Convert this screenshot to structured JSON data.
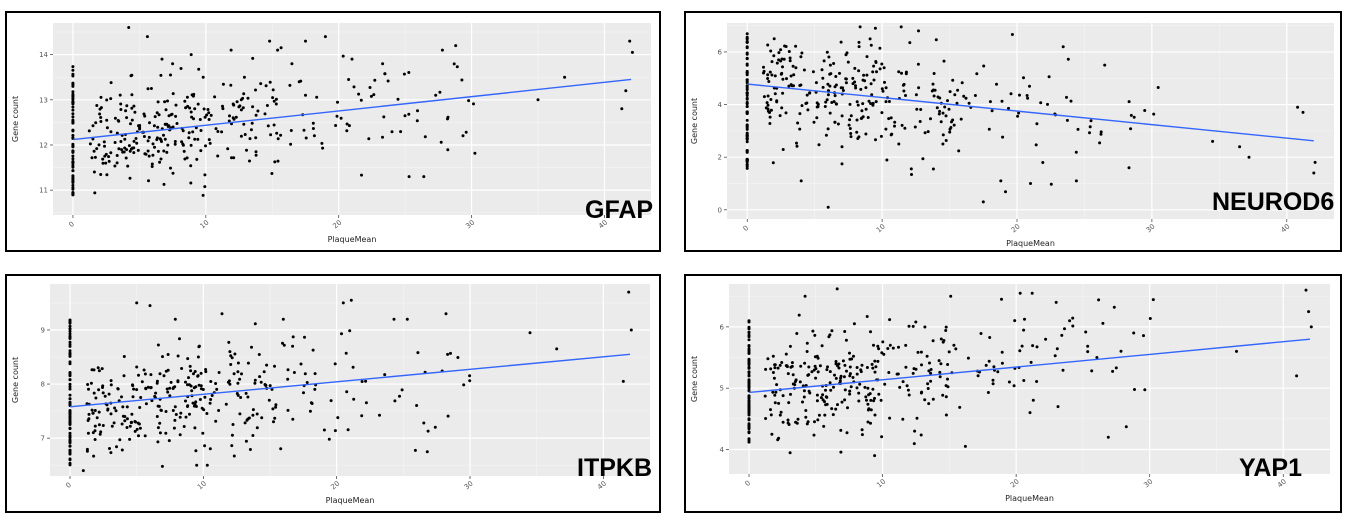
{
  "chart_data": [
    {
      "type": "scatter",
      "gene": "GFAP",
      "xlabel": "PlaqueMean",
      "ylabel": "Gene count",
      "x_ticks": [
        0,
        10,
        20,
        30,
        40
      ],
      "y_ticks": [
        11,
        12,
        13,
        14
      ],
      "xlim": [
        -1.5,
        43.5
      ],
      "ylim": [
        10.45,
        14.7
      ],
      "grid": true,
      "trend": {
        "x": [
          0,
          42
        ],
        "y": [
          12.12,
          13.45
        ],
        "color": "#3366FF"
      },
      "seed": 11,
      "cluster_n": 70,
      "cluster_ymin": 10.8,
      "cluster_ymax": 13.75,
      "n": 330,
      "base": 12.12,
      "slope": 0.032,
      "noise": 0.55,
      "extra_x": [
        4.2,
        5.6,
        6.7,
        7.5,
        8.9,
        9.8,
        11.9,
        14.8,
        15.4,
        17.5,
        19.0,
        21.0,
        23.3,
        25.3,
        26.4,
        27.3,
        27.8,
        28.8,
        35.0,
        37.0,
        41.3,
        41.9,
        42.1,
        41.6
      ],
      "extra_y": [
        14.6,
        14.4,
        13.9,
        13.8,
        14.0,
        13.5,
        14.1,
        14.3,
        14.1,
        14.3,
        14.4,
        13.9,
        13.8,
        11.3,
        11.3,
        13.1,
        14.1,
        14.2,
        13.0,
        13.5,
        12.8,
        14.3,
        14.05,
        13.2
      ]
    },
    {
      "type": "scatter",
      "gene": "NEUROD6",
      "xlabel": "PlaqueMean",
      "ylabel": "Gene count",
      "x_ticks": [
        0,
        10,
        20,
        30,
        40
      ],
      "y_ticks": [
        0,
        2,
        4,
        6
      ],
      "xlim": [
        -1.5,
        43.5
      ],
      "ylim": [
        -0.35,
        7.1
      ],
      "grid": true,
      "trend": {
        "x": [
          0,
          42
        ],
        "y": [
          4.78,
          2.62
        ],
        "color": "#3366FF"
      },
      "seed": 23,
      "cluster_n": 80,
      "cluster_ymin": 1.5,
      "cluster_ymax": 6.7,
      "n": 330,
      "base": 4.78,
      "slope": -0.0515,
      "noise": 1.05,
      "extra_x": [
        6.0,
        9.5,
        12.7,
        17.5,
        18.8,
        21.0,
        24.4,
        26.5,
        28.3,
        34.5,
        36.5,
        37.2,
        40.8,
        41.2,
        42.0,
        42.1,
        2.0,
        4.0
      ],
      "extra_y": [
        0.1,
        6.9,
        6.8,
        0.3,
        1.1,
        1.0,
        1.1,
        5.5,
        1.6,
        2.6,
        2.4,
        2.0,
        3.9,
        3.7,
        1.4,
        1.8,
        6.5,
        1.1
      ]
    },
    {
      "type": "scatter",
      "gene": "ITPKB",
      "xlabel": "PlaqueMean",
      "ylabel": "Gene count",
      "x_ticks": [
        0,
        10,
        20,
        30,
        40
      ],
      "y_ticks": [
        7,
        8,
        9
      ],
      "xlim": [
        -1.5,
        43.5
      ],
      "ylim": [
        6.3,
        9.85
      ],
      "grid": true,
      "trend": {
        "x": [
          0,
          42
        ],
        "y": [
          7.58,
          8.55
        ],
        "color": "#3366FF"
      },
      "seed": 37,
      "cluster_n": 80,
      "cluster_ymin": 6.5,
      "cluster_ymax": 9.2,
      "n": 330,
      "base": 7.58,
      "slope": 0.023,
      "noise": 0.5,
      "extra_x": [
        5.0,
        6.0,
        7.9,
        9.5,
        10.3,
        11.4,
        16.0,
        20.5,
        21.1,
        24.3,
        25.3,
        26.8,
        28.2,
        34.5,
        36.5,
        41.5,
        41.9,
        42.1,
        1.0,
        27.4
      ],
      "extra_y": [
        9.5,
        9.45,
        9.2,
        6.5,
        6.5,
        9.3,
        9.2,
        9.5,
        9.55,
        9.2,
        9.2,
        6.75,
        9.3,
        8.95,
        8.65,
        8.05,
        9.7,
        9.0,
        6.4,
        7.2
      ]
    },
    {
      "type": "scatter",
      "gene": "YAP1",
      "xlabel": "PlaqueMean",
      "ylabel": "Gene count",
      "x_ticks": [
        0,
        10,
        20,
        30,
        40
      ],
      "y_ticks": [
        4,
        5,
        6
      ],
      "xlim": [
        -1.5,
        43.5
      ],
      "ylim": [
        3.6,
        6.7
      ],
      "grid": true,
      "trend": {
        "x": [
          0,
          42
        ],
        "y": [
          4.93,
          5.8
        ],
        "color": "#3366FF"
      },
      "seed": 51,
      "cluster_n": 80,
      "cluster_ymin": 4.1,
      "cluster_ymax": 6.1,
      "n": 330,
      "base": 4.93,
      "slope": 0.0207,
      "noise": 0.45,
      "extra_x": [
        4.2,
        6.6,
        9.4,
        15.1,
        18.9,
        20.3,
        21.2,
        23.0,
        24.0,
        26.9,
        28.8,
        36.5,
        41.0,
        41.7,
        41.9,
        42.1,
        12.4,
        16.2
      ],
      "extra_y": [
        6.5,
        6.62,
        3.9,
        6.5,
        6.45,
        6.55,
        6.55,
        6.4,
        6.1,
        4.2,
        5.9,
        5.6,
        5.2,
        6.6,
        6.25,
        6.0,
        4.3,
        4.05
      ]
    }
  ]
}
